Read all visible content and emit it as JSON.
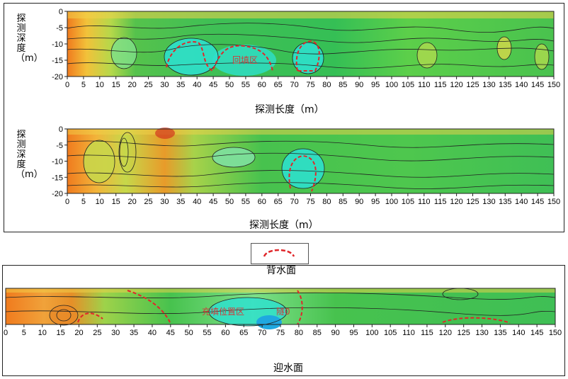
{
  "figure_top": {
    "panels": [
      {
        "ylabel": "探测深度（m）",
        "xlabel": "探测长度（m）",
        "annotation": "回填区"
      },
      {
        "ylabel": "探测深度（m）",
        "xlabel": "探测长度（m）",
        "annotation": ""
      }
    ]
  },
  "figure_bottom": {
    "legend_top_label": "背水面",
    "xlabel": "迎水面",
    "annotations": [
      "充填位置区",
      "隧0"
    ]
  },
  "chart_data": [
    {
      "type": "heatmap",
      "title": "",
      "xlabel": "探测长度（m）",
      "ylabel": "探测深度（m）",
      "x_ticks": [
        0,
        5,
        10,
        15,
        20,
        25,
        30,
        35,
        40,
        45,
        50,
        55,
        60,
        65,
        70,
        75,
        80,
        85,
        90,
        95,
        100,
        105,
        110,
        115,
        120,
        125,
        130,
        135,
        140,
        145,
        150
      ],
      "y_ticks": [
        0,
        -5,
        -10,
        -15,
        -20
      ],
      "xlim": [
        0,
        150
      ],
      "ylim": [
        -20,
        0
      ],
      "annotations": [
        "回填区"
      ]
    },
    {
      "type": "heatmap",
      "title": "",
      "xlabel": "探测长度（m）",
      "ylabel": "探测深度（m）",
      "x_ticks": [
        0,
        5,
        10,
        15,
        20,
        25,
        30,
        35,
        40,
        45,
        50,
        55,
        60,
        65,
        70,
        75,
        80,
        85,
        90,
        95,
        100,
        105,
        110,
        115,
        120,
        125,
        130,
        135,
        140,
        145,
        150
      ],
      "y_ticks": [
        0,
        -5,
        -10,
        -15,
        -20
      ],
      "xlim": [
        0,
        150
      ],
      "ylim": [
        -20,
        0
      ]
    },
    {
      "type": "heatmap",
      "title": "",
      "xlabel": "迎水面",
      "x_ticks": [
        0,
        5,
        10,
        15,
        20,
        25,
        30,
        35,
        40,
        45,
        50,
        55,
        60,
        65,
        70,
        75,
        80,
        85,
        90,
        95,
        100,
        105,
        110,
        115,
        120,
        125,
        130,
        135,
        140,
        145,
        150
      ],
      "xlim": [
        0,
        150
      ],
      "annotations": [
        "充填位置区",
        "隧0"
      ]
    }
  ]
}
